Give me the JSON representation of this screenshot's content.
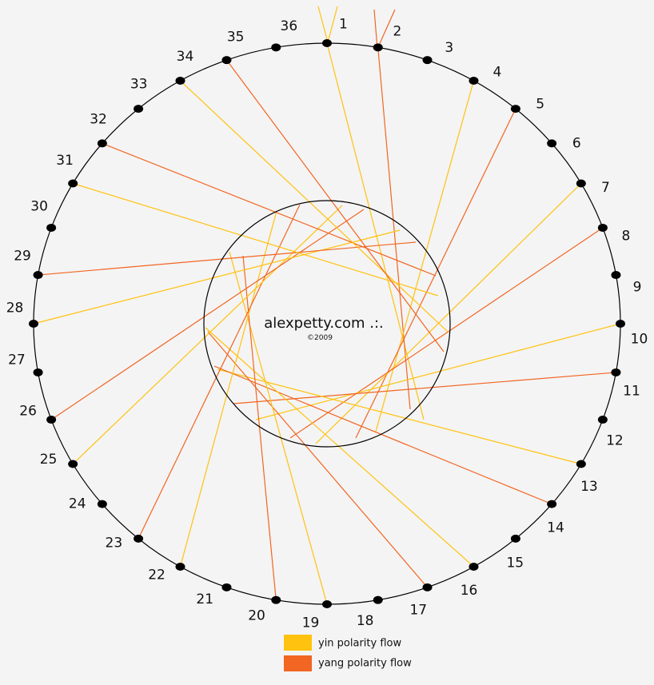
{
  "points": [
    "1",
    "2",
    "3",
    "4",
    "5",
    "6",
    "7",
    "8",
    "9",
    "10",
    "11",
    "12",
    "13",
    "14",
    "15",
    "16",
    "17",
    "18",
    "19",
    "20",
    "21",
    "22",
    "23",
    "24",
    "25",
    "26",
    "27",
    "28",
    "29",
    "30",
    "31",
    "32",
    "33",
    "34",
    "35",
    "36"
  ],
  "center": {
    "title": "alexpetty.com .:.",
    "copyright": "©2009"
  },
  "legend": [
    {
      "label": "yin polarity flow",
      "color": "#ffc20e"
    },
    {
      "label": "yang polarity flow",
      "color": "#f26522"
    }
  ]
}
